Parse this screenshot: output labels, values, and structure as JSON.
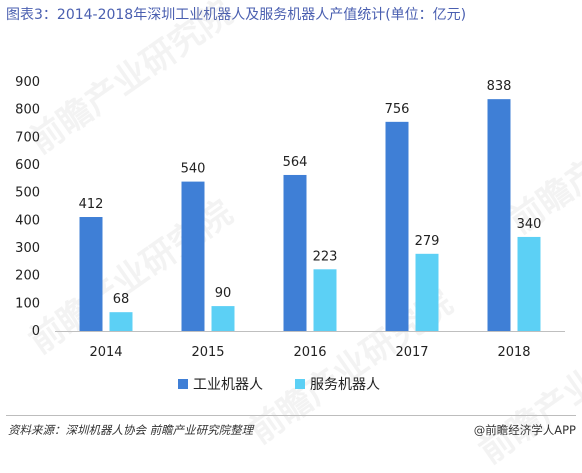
{
  "title": "图表3：2014-2018年深圳工业机器人及服务机器人产值统计(单位：亿元)",
  "source": "资料来源：深圳机器人协会 前瞻产业研究院整理",
  "brand": "@前瞻经济学人APP",
  "watermark": "前瞻产业研究院",
  "colors": {
    "series1": "#3f7fd6",
    "series2": "#5cd0f5",
    "title": "#4a5fb0"
  },
  "chart_data": {
    "type": "bar",
    "title": "图表3：2014-2018年深圳工业机器人及服务机器人产值统计(单位：亿元)",
    "categories": [
      "2014",
      "2015",
      "2016",
      "2017",
      "2018"
    ],
    "series": [
      {
        "name": "工业机器人",
        "values": [
          412,
          540,
          564,
          756,
          838
        ],
        "color": "#3f7fd6"
      },
      {
        "name": "服务机器人",
        "values": [
          68,
          90,
          223,
          279,
          340
        ],
        "color": "#5cd0f5"
      }
    ],
    "yticks": [
      0,
      100,
      200,
      300,
      400,
      500,
      600,
      700,
      800,
      900
    ],
    "ylim": [
      0,
      900
    ],
    "grid": false,
    "legend": "bottom"
  }
}
